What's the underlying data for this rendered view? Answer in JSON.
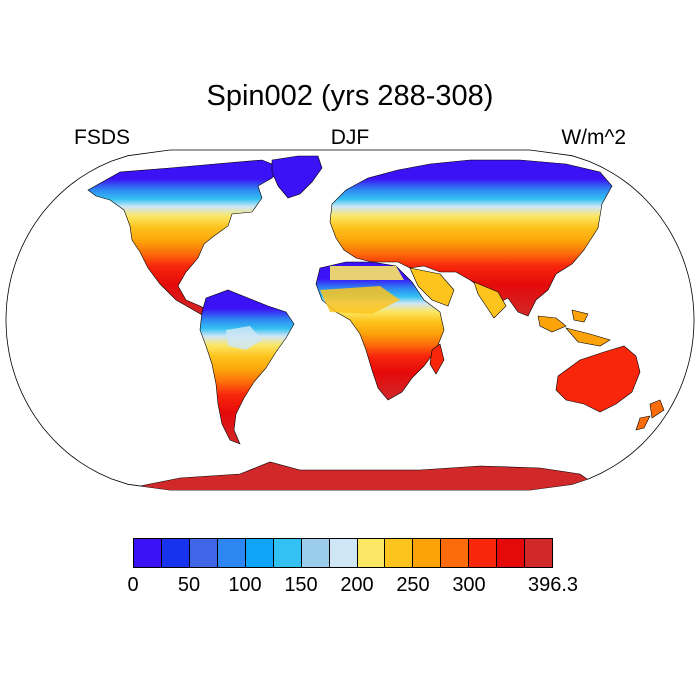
{
  "title": "Spin002 (yrs 288-308)",
  "subtitle_left": "FSDS",
  "subtitle_center": "DJF",
  "subtitle_right": "W/m^2",
  "colorbar": {
    "colors": [
      "#3b11f5",
      "#1733ee",
      "#3f66e6",
      "#2e86f2",
      "#0fa4f5",
      "#33c0f2",
      "#9bcceb",
      "#cfe6f6",
      "#fbe764",
      "#fdc41e",
      "#fca30a",
      "#fc6c0a",
      "#f8270c",
      "#e50a0a",
      "#d1282a"
    ],
    "labels": [
      {
        "text": "0",
        "index": 0
      },
      {
        "text": "50",
        "index": 2
      },
      {
        "text": "100",
        "index": 4
      },
      {
        "text": "150",
        "index": 6
      },
      {
        "text": "200",
        "index": 8
      },
      {
        "text": "250",
        "index": 10
      },
      {
        "text": "300",
        "index": 12
      },
      {
        "text": "396.3",
        "index": 15
      }
    ]
  },
  "map": {
    "projection": "robinson",
    "ocean_color": "#ffffff",
    "coastline_color": "#000000"
  }
}
